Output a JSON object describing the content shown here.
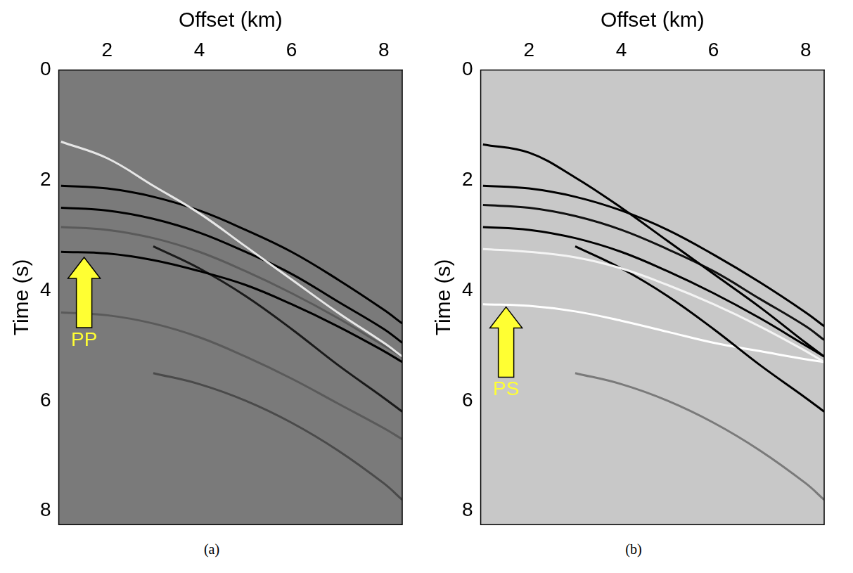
{
  "chart_data": [
    {
      "type": "line",
      "panel_label": "(a)",
      "xlabel": "Offset (km)",
      "ylabel": "Time (s)",
      "color": "#7a7a7a",
      "xlim": [
        0.95,
        8.4
      ],
      "xticks": [
        2,
        4,
        6,
        8
      ],
      "ylim": [
        0,
        8.25
      ],
      "yticks": [
        0,
        2,
        4,
        6,
        8
      ],
      "grid": false,
      "x": [
        1,
        2,
        3,
        4,
        5,
        6,
        7,
        8,
        8.4
      ],
      "series": [
        {
          "color": "#e6e6e6",
          "values": [
            1.3,
            1.6,
            2.1,
            2.6,
            3.2,
            3.8,
            4.4,
            4.95,
            5.2
          ]
        },
        {
          "color": "#000000",
          "values": [
            2.1,
            2.15,
            2.3,
            2.55,
            2.9,
            3.3,
            3.8,
            4.35,
            4.6
          ]
        },
        {
          "color": "#000000",
          "values": [
            2.5,
            2.55,
            2.7,
            2.95,
            3.3,
            3.7,
            4.2,
            4.7,
            4.95
          ]
        },
        {
          "color": "#5a5a5a",
          "values": [
            2.85,
            2.9,
            3.05,
            3.3,
            3.65,
            4.05,
            4.5,
            5.0,
            5.2
          ]
        },
        {
          "color": "#000000",
          "values": [
            3.3,
            3.33,
            3.45,
            3.65,
            3.9,
            4.25,
            4.65,
            5.1,
            5.3
          ]
        },
        {
          "color": "#1a1a1a",
          "values": [
            null,
            null,
            3.2,
            3.6,
            4.1,
            4.7,
            5.35,
            5.95,
            6.2
          ]
        },
        {
          "color": "#5a5a5a",
          "values": [
            4.4,
            4.45,
            4.6,
            4.85,
            5.2,
            5.6,
            6.05,
            6.5,
            6.7
          ]
        },
        {
          "color": "#4a4a4a",
          "values": [
            null,
            null,
            5.5,
            5.7,
            6.0,
            6.4,
            6.9,
            7.5,
            7.8
          ]
        }
      ],
      "annotations": [
        {
          "text": "PP",
          "x": 1.5,
          "y": 3.4
        }
      ]
    },
    {
      "type": "line",
      "panel_label": "(b)",
      "xlabel": "Offset (km)",
      "ylabel": "Time (s)",
      "color": "#c8c8c8",
      "xlim": [
        0.95,
        8.4
      ],
      "xticks": [
        2,
        4,
        6,
        8
      ],
      "ylim": [
        0,
        8.25
      ],
      "yticks": [
        0,
        2,
        4,
        6,
        8
      ],
      "grid": false,
      "x": [
        1,
        2,
        3,
        4,
        5,
        6,
        7,
        8,
        8.4
      ],
      "series": [
        {
          "color": "#000000",
          "values": [
            1.35,
            1.5,
            1.95,
            2.5,
            3.1,
            3.7,
            4.3,
            4.95,
            5.2
          ]
        },
        {
          "color": "#000000",
          "values": [
            2.1,
            2.15,
            2.3,
            2.55,
            2.9,
            3.35,
            3.85,
            4.4,
            4.65
          ]
        },
        {
          "color": "#111111",
          "values": [
            2.45,
            2.5,
            2.65,
            2.9,
            3.25,
            3.65,
            4.15,
            4.65,
            4.9
          ]
        },
        {
          "color": "#000000",
          "values": [
            2.85,
            2.9,
            3.05,
            3.3,
            3.65,
            4.05,
            4.5,
            5.0,
            5.2
          ]
        },
        {
          "color": "#f4f4f4",
          "values": [
            3.25,
            3.3,
            3.4,
            3.6,
            3.9,
            4.25,
            4.65,
            5.1,
            5.3
          ]
        },
        {
          "color": "#000000",
          "values": [
            null,
            null,
            3.2,
            3.6,
            4.1,
            4.7,
            5.35,
            5.95,
            6.2
          ]
        },
        {
          "color": "#ffffff",
          "values": [
            4.25,
            4.28,
            4.38,
            4.55,
            4.75,
            4.95,
            5.1,
            5.25,
            5.3
          ]
        },
        {
          "color": "#7a7a7a",
          "values": [
            null,
            null,
            5.5,
            5.7,
            6.0,
            6.4,
            6.9,
            7.5,
            7.8
          ]
        }
      ],
      "annotations": [
        {
          "text": "PS",
          "x": 1.5,
          "y": 4.3
        }
      ]
    }
  ]
}
